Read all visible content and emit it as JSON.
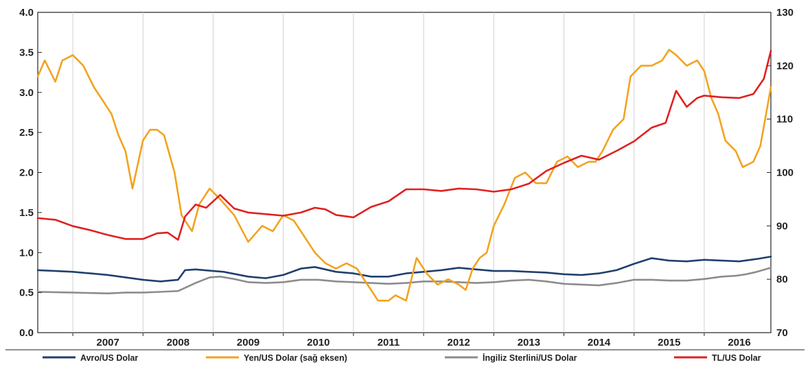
{
  "chart_data": {
    "type": "line",
    "colors": {
      "avro": "#1f3f6e",
      "yen": "#f2a31e",
      "sterlin": "#8c8c8c",
      "tl": "#e02020",
      "grid": "#d0d0d0",
      "axis": "#222222"
    },
    "x_ticks": [
      "2007",
      "2008",
      "2009",
      "2010",
      "2011",
      "2012",
      "2013",
      "2014",
      "2015",
      "2016"
    ],
    "xlim": [
      2006.5,
      2016.95
    ],
    "left_axis": {
      "ylim": [
        0.0,
        4.0
      ],
      "ticks": [
        "0.0",
        "0.5",
        "1.0",
        "1.5",
        "2.0",
        "2.5",
        "3.0",
        "3.5",
        "4.0"
      ]
    },
    "right_axis": {
      "ylim": [
        70,
        130
      ],
      "ticks": [
        "70",
        "80",
        "90",
        "100",
        "110",
        "120",
        "130"
      ]
    },
    "grid": "vertical",
    "legend": {
      "position": "bottom"
    },
    "series": [
      {
        "name": "Avro/US Dolar",
        "axis": "left",
        "color_key": "avro",
        "x": [
          2006.5,
          2006.75,
          2007.0,
          2007.25,
          2007.5,
          2007.75,
          2008.0,
          2008.25,
          2008.5,
          2008.6,
          2008.75,
          2009.0,
          2009.15,
          2009.5,
          2009.75,
          2010.0,
          2010.25,
          2010.45,
          2010.75,
          2011.0,
          2011.25,
          2011.5,
          2011.75,
          2012.0,
          2012.25,
          2012.5,
          2012.75,
          2013.0,
          2013.25,
          2013.5,
          2013.75,
          2014.0,
          2014.25,
          2014.5,
          2014.75,
          2015.0,
          2015.25,
          2015.5,
          2015.75,
          2016.0,
          2016.25,
          2016.5,
          2016.75,
          2016.95
        ],
        "values": [
          0.78,
          0.77,
          0.76,
          0.74,
          0.72,
          0.69,
          0.66,
          0.64,
          0.66,
          0.78,
          0.79,
          0.77,
          0.76,
          0.7,
          0.68,
          0.72,
          0.8,
          0.82,
          0.76,
          0.74,
          0.7,
          0.7,
          0.74,
          0.76,
          0.78,
          0.81,
          0.79,
          0.77,
          0.77,
          0.76,
          0.75,
          0.73,
          0.72,
          0.74,
          0.78,
          0.86,
          0.93,
          0.9,
          0.89,
          0.91,
          0.9,
          0.89,
          0.92,
          0.95
        ]
      },
      {
        "name": "Yen/US Dolar (sağ eksen)",
        "axis": "right",
        "color_key": "yen",
        "x": [
          2006.5,
          2006.6,
          2006.75,
          2006.85,
          2007.0,
          2007.15,
          2007.3,
          2007.45,
          2007.55,
          2007.65,
          2007.75,
          2007.85,
          2008.0,
          2008.1,
          2008.2,
          2008.3,
          2008.45,
          2008.55,
          2008.7,
          2008.8,
          2008.95,
          2009.1,
          2009.3,
          2009.5,
          2009.7,
          2009.85,
          2010.0,
          2010.15,
          2010.3,
          2010.45,
          2010.6,
          2010.75,
          2010.9,
          2011.05,
          2011.2,
          2011.35,
          2011.5,
          2011.6,
          2011.75,
          2011.9,
          2012.05,
          2012.2,
          2012.35,
          2012.5,
          2012.6,
          2012.7,
          2012.8,
          2012.9,
          2013.0,
          2013.15,
          2013.3,
          2013.45,
          2013.6,
          2013.75,
          2013.9,
          2014.05,
          2014.2,
          2014.35,
          2014.45,
          2014.55,
          2014.7,
          2014.85,
          2014.95,
          2015.1,
          2015.25,
          2015.4,
          2015.5,
          2015.6,
          2015.75,
          2015.9,
          2016.0,
          2016.1,
          2016.2,
          2016.3,
          2016.45,
          2016.55,
          2016.7,
          2016.8,
          2016.95
        ],
        "values": [
          118,
          121,
          117,
          121,
          122,
          120,
          116,
          113,
          111,
          107,
          104,
          97,
          106,
          108,
          108,
          107,
          100,
          92,
          89,
          94,
          97,
          95,
          92,
          87,
          90,
          89,
          92,
          91,
          88,
          85,
          83,
          82,
          83,
          82,
          79,
          76,
          76,
          77,
          76,
          84,
          81,
          79,
          80,
          79,
          78,
          82,
          84,
          85,
          90,
          94,
          99,
          100,
          98,
          98,
          102,
          103,
          101,
          102,
          102,
          104,
          108,
          110,
          118,
          120,
          120,
          121,
          123,
          122,
          120,
          121,
          119,
          114,
          111,
          106,
          104,
          101,
          102,
          105,
          116
        ]
      },
      {
        "name": "İngiliz Sterlini/US Dolar",
        "axis": "left",
        "color_key": "sterlin",
        "x": [
          2006.5,
          2007.0,
          2007.5,
          2007.75,
          2008.0,
          2008.25,
          2008.5,
          2008.75,
          2008.95,
          2009.1,
          2009.3,
          2009.5,
          2009.75,
          2010.0,
          2010.25,
          2010.5,
          2010.75,
          2011.0,
          2011.25,
          2011.5,
          2011.75,
          2012.0,
          2012.25,
          2012.5,
          2012.75,
          2013.0,
          2013.25,
          2013.5,
          2013.75,
          2014.0,
          2014.25,
          2014.5,
          2014.75,
          2015.0,
          2015.25,
          2015.5,
          2015.75,
          2016.0,
          2016.25,
          2016.45,
          2016.6,
          2016.75,
          2016.95
        ],
        "values": [
          0.51,
          0.5,
          0.49,
          0.5,
          0.5,
          0.51,
          0.52,
          0.62,
          0.69,
          0.7,
          0.67,
          0.63,
          0.62,
          0.63,
          0.66,
          0.66,
          0.64,
          0.63,
          0.62,
          0.61,
          0.62,
          0.64,
          0.64,
          0.63,
          0.62,
          0.63,
          0.65,
          0.66,
          0.64,
          0.61,
          0.6,
          0.59,
          0.62,
          0.66,
          0.66,
          0.65,
          0.65,
          0.67,
          0.7,
          0.71,
          0.73,
          0.76,
          0.81
        ]
      },
      {
        "name": "TL/US Dolar",
        "axis": "left",
        "color_key": "tl",
        "x": [
          2006.5,
          2006.75,
          2007.0,
          2007.25,
          2007.5,
          2007.75,
          2008.0,
          2008.2,
          2008.35,
          2008.5,
          2008.6,
          2008.75,
          2008.9,
          2009.1,
          2009.3,
          2009.5,
          2009.75,
          2010.0,
          2010.25,
          2010.45,
          2010.6,
          2010.75,
          2011.0,
          2011.25,
          2011.5,
          2011.75,
          2012.0,
          2012.25,
          2012.5,
          2012.75,
          2013.0,
          2013.25,
          2013.5,
          2013.75,
          2014.0,
          2014.25,
          2014.5,
          2014.75,
          2015.0,
          2015.25,
          2015.45,
          2015.6,
          2015.75,
          2015.9,
          2016.0,
          2016.25,
          2016.5,
          2016.7,
          2016.85,
          2016.95
        ],
        "values": [
          1.43,
          1.41,
          1.33,
          1.28,
          1.22,
          1.17,
          1.17,
          1.24,
          1.25,
          1.16,
          1.45,
          1.6,
          1.56,
          1.72,
          1.55,
          1.5,
          1.48,
          1.46,
          1.5,
          1.56,
          1.54,
          1.47,
          1.44,
          1.57,
          1.64,
          1.79,
          1.79,
          1.77,
          1.8,
          1.79,
          1.76,
          1.79,
          1.86,
          2.02,
          2.12,
          2.21,
          2.16,
          2.27,
          2.39,
          2.56,
          2.62,
          3.02,
          2.82,
          2.93,
          2.96,
          2.94,
          2.93,
          2.98,
          3.17,
          3.52
        ]
      }
    ]
  }
}
